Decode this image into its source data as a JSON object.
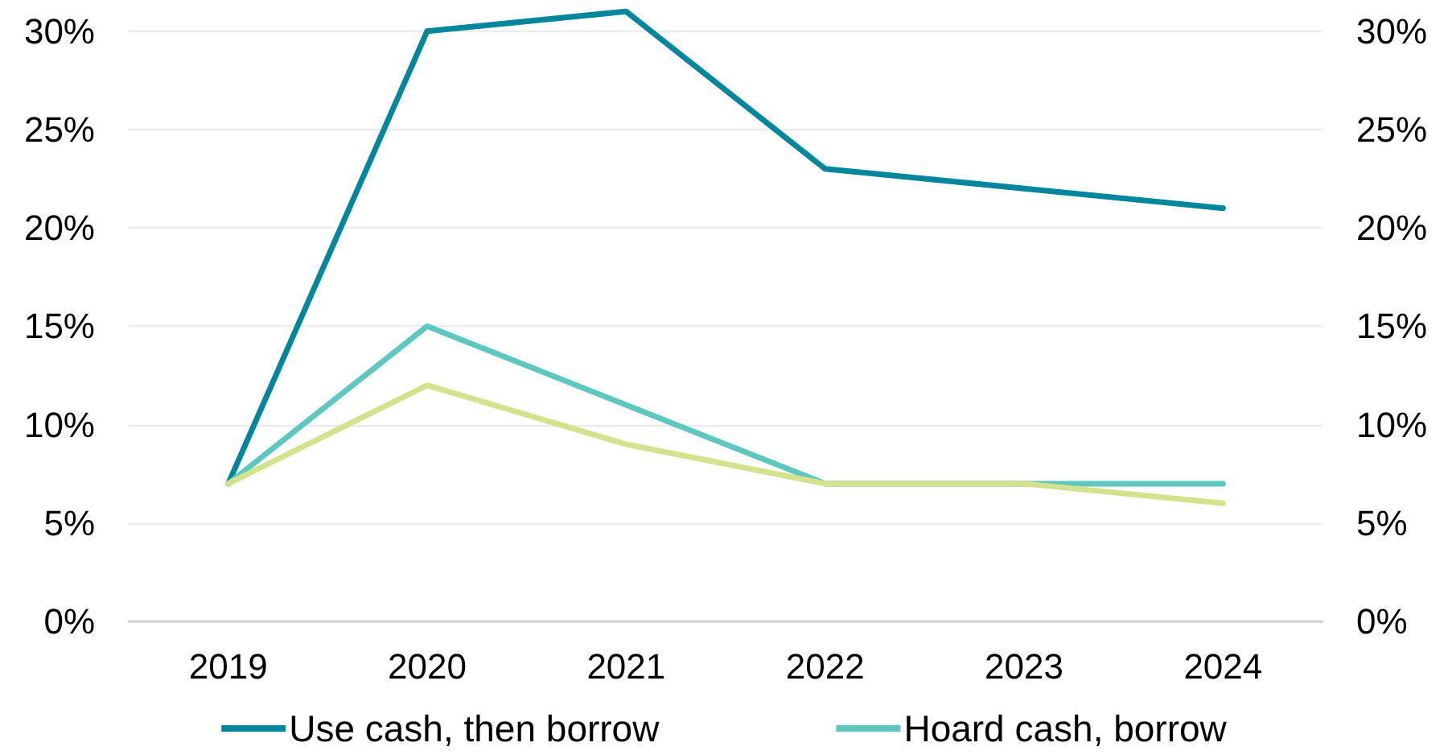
{
  "chart_data": {
    "type": "line",
    "categories": [
      "2019",
      "2020",
      "2021",
      "2022",
      "2023",
      "2024"
    ],
    "series": [
      {
        "name": "Use cash, then borrow",
        "color": "#00879e",
        "values": [
          7,
          30,
          31,
          23,
          22,
          21
        ]
      },
      {
        "name": "Hoard cash, borrow",
        "color": "#5cc8c0",
        "values": [
          7,
          15,
          11,
          7,
          7,
          7
        ]
      },
      {
        "color": "#d3e38b",
        "values": [
          7,
          12,
          9,
          7,
          7,
          6
        ]
      }
    ],
    "ylim": [
      0,
      31.5
    ],
    "yticks": [
      {
        "value": 0,
        "label": "0%"
      },
      {
        "value": 5,
        "label": "5%"
      },
      {
        "value": 10,
        "label": "10%"
      },
      {
        "value": 15,
        "label": "15%"
      },
      {
        "value": 20,
        "label": "20%"
      },
      {
        "value": 25,
        "label": "25%"
      },
      {
        "value": 30,
        "label": "30%"
      }
    ],
    "y2lim": [
      0,
      31.5
    ],
    "y2ticks": [
      {
        "value": 0,
        "label": "0%"
      },
      {
        "value": 5,
        "label": "5%"
      },
      {
        "value": 10,
        "label": "10%"
      },
      {
        "value": 15,
        "label": "15%"
      },
      {
        "value": 20,
        "label": "20%"
      },
      {
        "value": 25,
        "label": "25%"
      },
      {
        "value": 30,
        "label": "30%"
      }
    ],
    "grid": "y",
    "legend": "bottom",
    "marker": "none",
    "line_style": "solid"
  }
}
